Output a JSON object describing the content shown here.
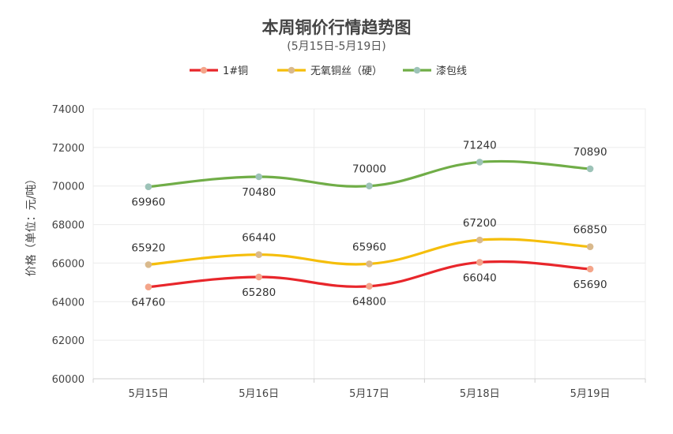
{
  "chart_data": {
    "type": "line",
    "title": "本周铜价行情趋势图",
    "subtitle": "(5月15日-5月19日)",
    "xlabel": "",
    "ylabel": "价格（单位：元/吨）",
    "categories": [
      "5月15日",
      "5月16日",
      "5月17日",
      "5月18日",
      "5月19日"
    ],
    "ylim": [
      60000,
      74000
    ],
    "yticks": [
      60000,
      62000,
      64000,
      66000,
      68000,
      70000,
      72000,
      74000
    ],
    "grid": true,
    "smooth": true,
    "legend_position": "top-center",
    "series": [
      {
        "name": "1#铜",
        "values": [
          64760,
          65280,
          64800,
          66040,
          65690
        ],
        "color": "#e8262b",
        "marker_color": "#f4a58a",
        "label_position": "below"
      },
      {
        "name": "无氧铜丝（硬）",
        "values": [
          65920,
          66440,
          65960,
          67200,
          66850
        ],
        "color": "#f5be0b",
        "marker_color": "#d9b98c",
        "label_position": "above"
      },
      {
        "name": "漆包线",
        "values": [
          69960,
          70480,
          70000,
          71240,
          70890
        ],
        "color": "#70ad47",
        "marker_color": "#9dc3b8",
        "label_position": "mixed"
      }
    ]
  }
}
